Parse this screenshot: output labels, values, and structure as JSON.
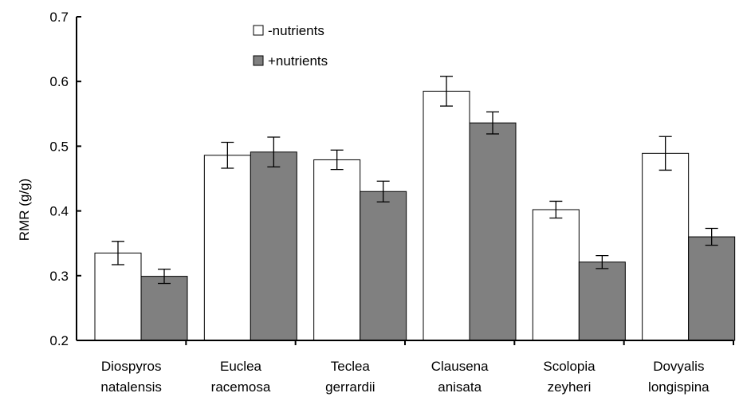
{
  "chart_data": {
    "type": "bar",
    "title": "",
    "xlabel": "",
    "ylabel": "RMR (g/g)",
    "ylim": [
      0.2,
      0.7
    ],
    "yticks": [
      "0.2",
      "0.3",
      "0.4",
      "0.5",
      "0.6",
      "0.7"
    ],
    "grid": false,
    "legend_position": "top-left",
    "categories": [
      [
        "Diospyros",
        "natalensis"
      ],
      [
        "Euclea",
        "racemosa"
      ],
      [
        "Teclea",
        "gerrardii"
      ],
      [
        "Clausena",
        "anisata"
      ],
      [
        "Scolopia",
        "zeyheri"
      ],
      [
        "Dovyalis",
        "longispina"
      ]
    ],
    "series": [
      {
        "name": "-nutrients",
        "color": "#ffffff",
        "values": [
          0.335,
          0.486,
          0.479,
          0.585,
          0.402,
          0.489
        ],
        "errors": [
          0.018,
          0.02,
          0.015,
          0.023,
          0.013,
          0.026
        ]
      },
      {
        "name": "+nutrients",
        "color": "#808080",
        "values": [
          0.299,
          0.491,
          0.43,
          0.536,
          0.321,
          0.36
        ],
        "errors": [
          0.011,
          0.023,
          0.016,
          0.017,
          0.01,
          0.013
        ]
      }
    ]
  }
}
